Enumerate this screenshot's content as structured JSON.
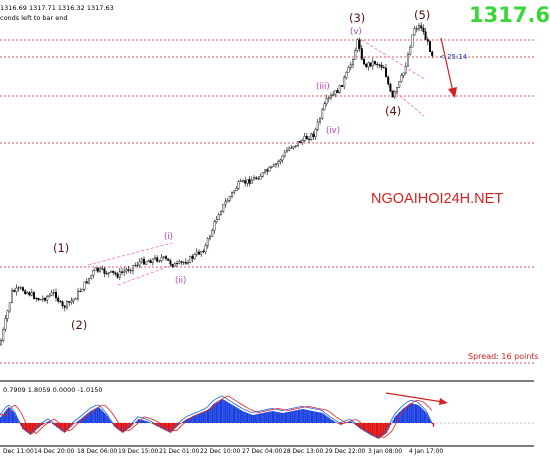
{
  "header": {
    "ohlc": "1316.69 1317.71 1316.32 1317.63",
    "countdown": "conds left to bar end"
  },
  "price_label": "1317.6",
  "timer_label": "< 25:14",
  "watermark": "NGOAIHOI24H.NET",
  "spread_label": "Spread: 16 points",
  "wave_labels": {
    "w1": "(1)",
    "w2": "(2)",
    "w3": "(3)",
    "w4": "(4)",
    "w5": "(5)",
    "i": "(i)",
    "ii": "(ii)",
    "iii": "(iii)",
    "iv": "(iv)",
    "v": "(v)"
  },
  "indicator_label": "0.7909 1.8059 0.0000 -1.0150",
  "x_ticks": [
    "Dec 11:00",
    "14 Dec 20:00",
    "18 Dec 06:00",
    "19 Dec 15:00",
    "21 Dec 01:00",
    "22 Dec 10:00",
    "27 Dec 04:00",
    "28 Dec 13:00",
    "29 Dec 22:00",
    "3 Jan 08:00",
    "4 Jan 17:00"
  ],
  "colors": {
    "green_price": "#3ad63a",
    "red": "#d42020",
    "wave_major": "#5a1010",
    "wave_minor": "#c040c0",
    "hist_blue": "#1a3fe0",
    "hist_red": "#e01010"
  }
}
